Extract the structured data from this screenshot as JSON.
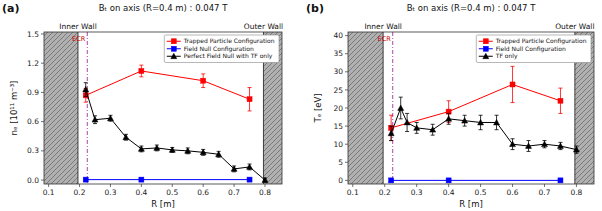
{
  "chart_data": [
    {
      "type": "line",
      "title": "Bₜ on axis (R=0.4 m) : 0.047 T",
      "xlabel": "R [m]",
      "ylabel": "nₑ [10¹¹ m⁻³]",
      "xlim": [
        0.085,
        0.855
      ],
      "ylim": [
        -0.04,
        1.52
      ],
      "xticks": [
        0.1,
        0.2,
        0.3,
        0.4,
        0.5,
        0.6,
        0.7,
        0.8
      ],
      "yticks": [
        {
          "value": 0.0,
          "label": "0.0"
        },
        0.3,
        0.6,
        0.9,
        1.2,
        1.5
      ],
      "grid": false,
      "legend": "upper right",
      "series": [
        {
          "name": "Trapped Particle Configuration",
          "color": "#ff0000",
          "marker": "square",
          "x": [
            0.22,
            0.4,
            0.6,
            0.75
          ],
          "values": [
            0.87,
            1.12,
            1.02,
            0.83
          ],
          "errors": [
            0.07,
            0.06,
            0.07,
            0.12
          ]
        },
        {
          "name": "Field Null Configuration",
          "color": "#0000ff",
          "marker": "square",
          "x": [
            0.22,
            0.4,
            0.75
          ],
          "values": [
            0.005,
            0.005,
            0.005
          ],
          "errors": [
            0.0,
            0.0,
            0.0
          ]
        },
        {
          "name": "Perfect Field Null with TF only",
          "color": "#000000",
          "marker": "triangle",
          "x": [
            0.22,
            0.25,
            0.3,
            0.35,
            0.4,
            0.45,
            0.5,
            0.55,
            0.6,
            0.65,
            0.7,
            0.75,
            0.8
          ],
          "values": [
            0.93,
            0.62,
            0.635,
            0.44,
            0.32,
            0.33,
            0.31,
            0.3,
            0.285,
            0.265,
            0.115,
            0.135,
            0.0
          ],
          "errors": [
            0.07,
            0.04,
            0.03,
            0.03,
            0.03,
            0.03,
            0.025,
            0.03,
            0.03,
            0.03,
            0.03,
            0.03,
            0.02
          ]
        }
      ],
      "annotations": [
        {
          "type": "wall",
          "text": "Inner Wall",
          "x": 0.195,
          "color": "#b0b0b0"
        },
        {
          "type": "wall",
          "text": "Outer Wall",
          "x": 0.795,
          "color": "#b0b0b0"
        },
        {
          "type": "vline",
          "x": 0.225,
          "color": "#aa44aa",
          "line_style": "dashdot"
        },
        {
          "type": "text",
          "text": "ECR",
          "x": 0.225,
          "color": "#cc0000"
        },
        {
          "type": "panel_label",
          "text": "(a)"
        }
      ]
    },
    {
      "type": "line",
      "title": "Bₜ on axis (R=0.4 m) : 0.047 T",
      "xlabel": "R [m]",
      "ylabel": "Tₑ [eV]",
      "xlim": [
        0.085,
        0.855
      ],
      "ylim": [
        -1.0,
        41.0
      ],
      "xticks": [
        0.1,
        0.2,
        0.3,
        0.4,
        0.5,
        0.6,
        0.7,
        0.8
      ],
      "yticks": [
        0,
        5,
        10,
        15,
        20,
        25,
        30,
        35,
        40
      ],
      "grid": false,
      "legend": "upper right",
      "series": [
        {
          "name": "Trapped Particle Configuration",
          "color": "#ff0000",
          "marker": "square",
          "x": [
            0.22,
            0.4,
            0.6,
            0.75
          ],
          "values": [
            14.5,
            19.0,
            26.5,
            22.0
          ],
          "errors": [
            3.5,
            3.0,
            5.0,
            3.5
          ]
        },
        {
          "name": "Field Null Configuration",
          "color": "#0000ff",
          "marker": "square",
          "x": [
            0.22,
            0.4,
            0.75
          ],
          "values": [
            0.0,
            0.0,
            0.0
          ],
          "errors": [
            0.0,
            0.0,
            0.0
          ]
        },
        {
          "name": "TF only",
          "color": "#000000",
          "marker": "triangle",
          "x": [
            0.22,
            0.25,
            0.27,
            0.3,
            0.35,
            0.4,
            0.45,
            0.5,
            0.55,
            0.6,
            0.65,
            0.7,
            0.75,
            0.8
          ],
          "values": [
            13.0,
            20.0,
            16.0,
            14.5,
            14.0,
            17.0,
            16.5,
            16.0,
            16.0,
            10.0,
            9.5,
            10.0,
            9.5,
            8.5
          ],
          "errors": [
            2.0,
            3.0,
            2.5,
            1.5,
            1.5,
            1.5,
            1.5,
            2.0,
            2.0,
            1.5,
            1.5,
            1.0,
            1.0,
            1.0
          ]
        }
      ],
      "annotations": [
        {
          "type": "wall",
          "text": "Inner Wall",
          "x": 0.195,
          "color": "#b0b0b0"
        },
        {
          "type": "wall",
          "text": "Outer Wall",
          "x": 0.795,
          "color": "#b0b0b0"
        },
        {
          "type": "vline",
          "x": 0.225,
          "color": "#aa44aa",
          "line_style": "dashdot"
        },
        {
          "type": "text",
          "text": "ECR",
          "x": 0.225,
          "color": "#cc0000"
        },
        {
          "type": "panel_label",
          "text": "(b)"
        }
      ]
    }
  ]
}
